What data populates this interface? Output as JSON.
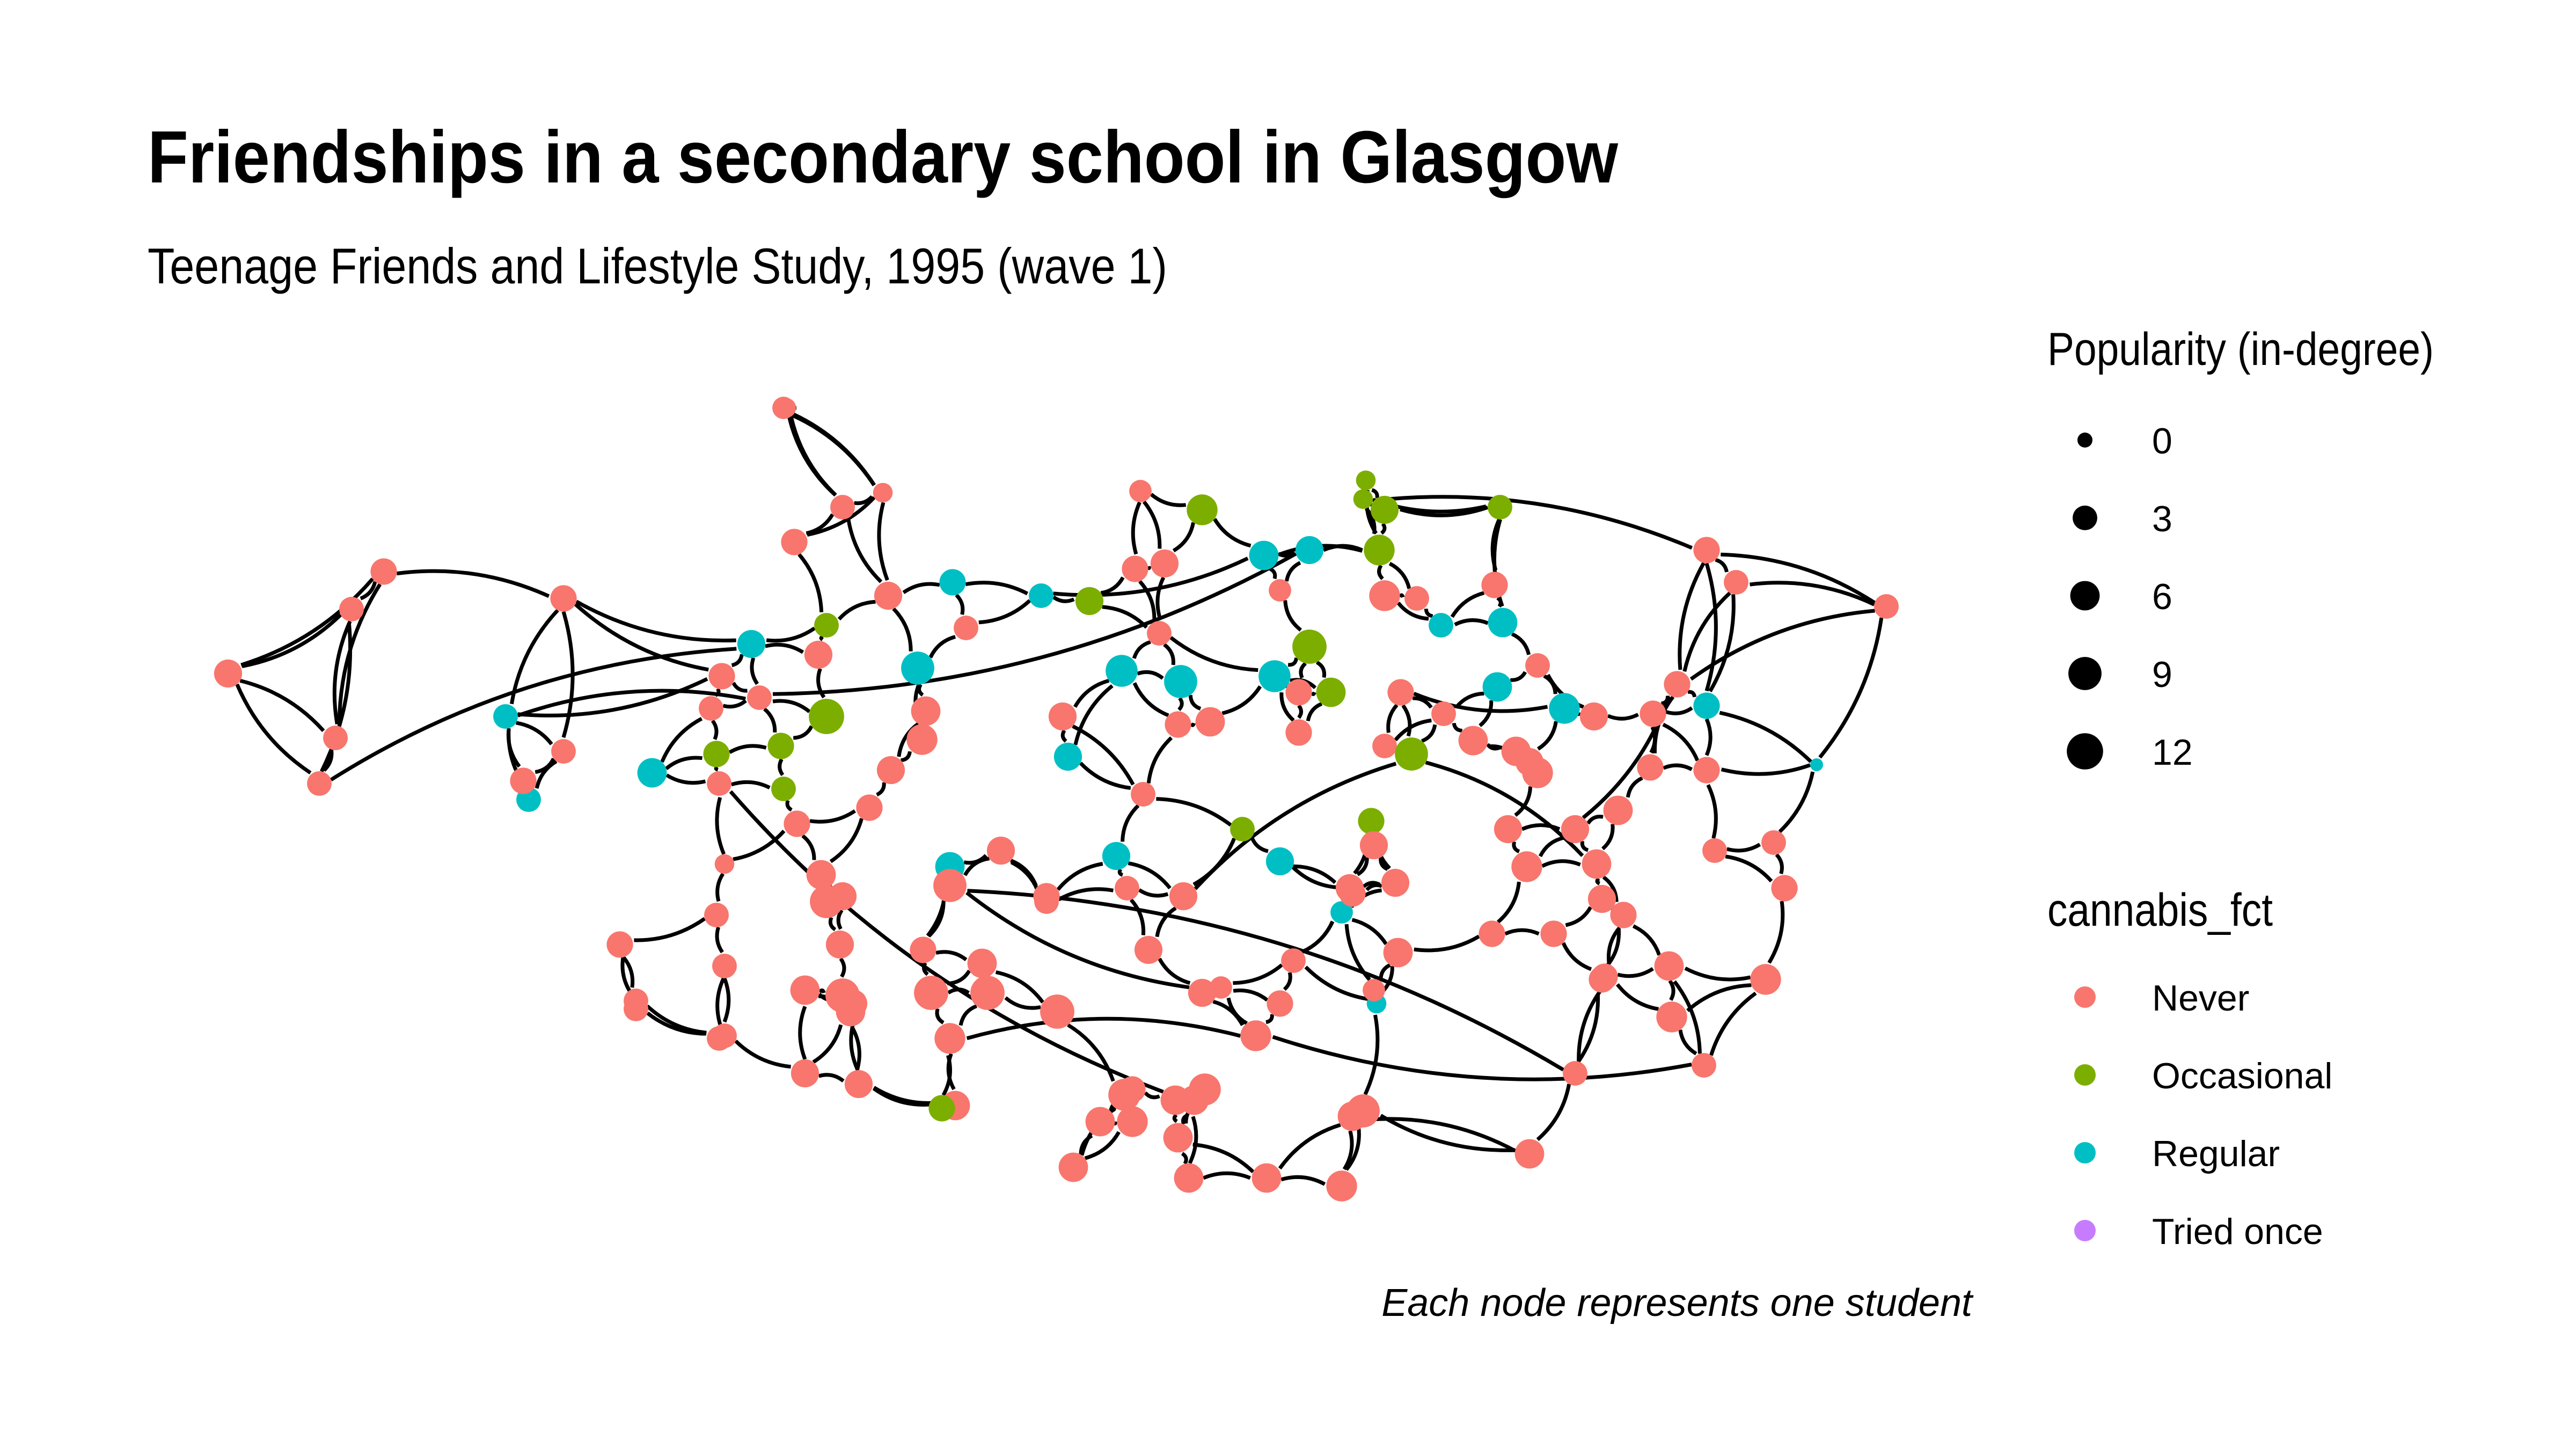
{
  "title": "Friendships in a secondary school in Glasgow",
  "subtitle": "Teenage Friends and Lifestyle Study, 1995 (wave 1)",
  "caption": "Each node represents one student",
  "legend_size": {
    "title": "Popularity (in-degree)",
    "items": [
      {
        "label": "0",
        "value": 0
      },
      {
        "label": "3",
        "value": 3
      },
      {
        "label": "6",
        "value": 6
      },
      {
        "label": "9",
        "value": 9
      },
      {
        "label": "12",
        "value": 12
      }
    ]
  },
  "legend_color": {
    "title": "cannabis_fct",
    "items": [
      {
        "label": "Never",
        "color": "#F8766D"
      },
      {
        "label": "Occasional",
        "color": "#7CAE00"
      },
      {
        "label": "Regular",
        "color": "#00BFC4"
      },
      {
        "label": "Tried once",
        "color": "#C77CFF"
      }
    ]
  },
  "colors": {
    "edge": "#000000"
  }
}
